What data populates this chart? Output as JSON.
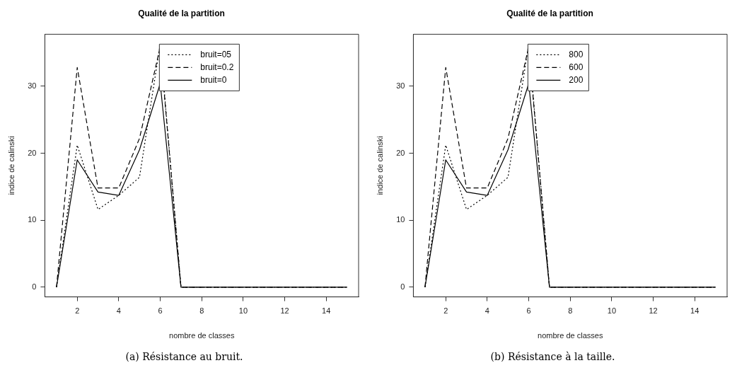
{
  "chart_data": [
    {
      "type": "line",
      "title": "Qualité de la partition",
      "xlabel": "nombre de classes",
      "ylabel": "indice de calinski",
      "annotations": [
        "(a) Résistance au bruit."
      ],
      "x": [
        1,
        2,
        3,
        4,
        5,
        6,
        7,
        8,
        9,
        10,
        11,
        12,
        13,
        14,
        15
      ],
      "xlim": [
        0.44,
        15.56
      ],
      "ylim": [
        -1.45,
        37.75
      ],
      "xticks": [
        2,
        4,
        6,
        8,
        10,
        12,
        14
      ],
      "yticks": [
        0,
        10,
        20,
        30
      ],
      "grid": false,
      "legend": "top",
      "marker": "none",
      "series": [
        {
          "name": "bruit=05",
          "color": "#000000",
          "line_style": "dotted",
          "values": [
            0,
            21.2,
            11.6,
            13.7,
            16.4,
            36.3,
            0,
            0,
            0,
            0,
            0,
            0,
            0,
            0,
            0
          ]
        },
        {
          "name": "bruit=0.2",
          "color": "#000000",
          "line_style": "dashed",
          "values": [
            0,
            32.8,
            14.8,
            14.8,
            22.2,
            35.9,
            0,
            0,
            0,
            0,
            0,
            0,
            0,
            0,
            0
          ]
        },
        {
          "name": "bruit=0",
          "color": "#000000",
          "line_style": "solid",
          "values": [
            0,
            19.0,
            14.2,
            13.7,
            20.5,
            30.4,
            0,
            0,
            0,
            0,
            0,
            0,
            0,
            0,
            0
          ]
        }
      ]
    },
    {
      "type": "line",
      "title": "Qualité de la partition",
      "xlabel": "nombre de classes",
      "ylabel": "indice de calinski",
      "annotations": [
        "(b) Résistance à la taille."
      ],
      "x": [
        1,
        2,
        3,
        4,
        5,
        6,
        7,
        8,
        9,
        10,
        11,
        12,
        13,
        14,
        15
      ],
      "xlim": [
        0.44,
        15.56
      ],
      "ylim": [
        -1.45,
        37.75
      ],
      "xticks": [
        2,
        4,
        6,
        8,
        10,
        12,
        14
      ],
      "yticks": [
        0,
        10,
        20,
        30
      ],
      "grid": false,
      "legend": "top",
      "marker": "none",
      "series": [
        {
          "name": "800",
          "color": "#000000",
          "line_style": "dotted",
          "values": [
            0,
            21.2,
            11.6,
            13.7,
            16.4,
            36.3,
            0,
            0,
            0,
            0,
            0,
            0,
            0,
            0,
            0
          ]
        },
        {
          "name": "600",
          "color": "#000000",
          "line_style": "dashed",
          "values": [
            0,
            32.8,
            14.8,
            14.8,
            22.2,
            35.9,
            0,
            0,
            0,
            0,
            0,
            0,
            0,
            0,
            0
          ]
        },
        {
          "name": "200",
          "color": "#000000",
          "line_style": "solid",
          "values": [
            0,
            19.0,
            14.2,
            13.7,
            20.5,
            30.4,
            0,
            0,
            0,
            0,
            0,
            0,
            0,
            0,
            0
          ]
        }
      ]
    }
  ]
}
